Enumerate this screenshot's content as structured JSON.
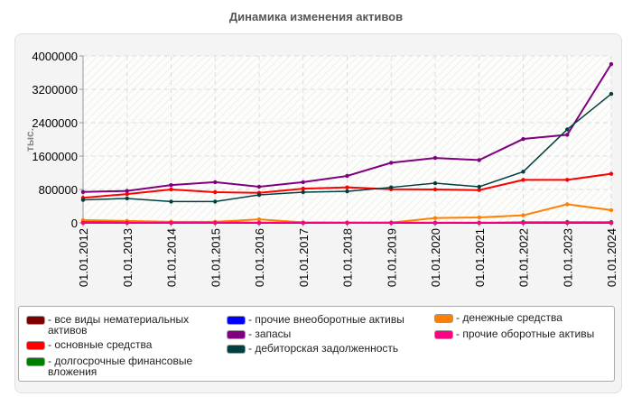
{
  "chart_data": {
    "type": "line",
    "title": "Динамика изменения активов",
    "ylabel": "тыс.",
    "xlabel": "",
    "ylim": [
      0,
      4000000
    ],
    "yticks": [
      "0",
      "800000",
      "1600000",
      "2400000",
      "3200000",
      "4000000"
    ],
    "grid": true,
    "legend_position": "bottom",
    "categories": [
      "01.01.2012",
      "01.01.2013",
      "01.01.2014",
      "01.01.2015",
      "01.01.2016",
      "01.01.2017",
      "01.01.2018",
      "01.01.2019",
      "01.01.2020",
      "01.01.2021",
      "01.01.2022",
      "01.01.2023",
      "01.01.2024"
    ],
    "series": [
      {
        "name": "- все виды нематериальных активов",
        "color": "#800000",
        "values": [
          0,
          0,
          0,
          0,
          0,
          0,
          0,
          0,
          0,
          0,
          0,
          0,
          0
        ]
      },
      {
        "name": "- основные средства",
        "color": "#ff0000",
        "values": [
          600000,
          690000,
          800000,
          735000,
          720000,
          820000,
          850000,
          805000,
          800000,
          785000,
          1030000,
          1030000,
          1175000
        ]
      },
      {
        "name": "- долгосрочные финансовые вложения",
        "color": "#008000",
        "values": [
          0,
          0,
          0,
          0,
          0,
          0,
          0,
          0,
          0,
          0,
          20000,
          20000,
          20000
        ]
      },
      {
        "name": "- прочие внеоборотные активы",
        "color": "#0000ff",
        "values": [
          15000,
          15000,
          10000,
          10000,
          0,
          0,
          0,
          0,
          0,
          0,
          0,
          0,
          0
        ]
      },
      {
        "name": "- запасы",
        "color": "#800080",
        "values": [
          740000,
          765000,
          905000,
          975000,
          865000,
          975000,
          1125000,
          1440000,
          1555000,
          1505000,
          2010000,
          2110000,
          3805000
        ]
      },
      {
        "name": "- дебиторская задолженность",
        "color": "#004040",
        "values": [
          550000,
          585000,
          510000,
          510000,
          670000,
          735000,
          755000,
          850000,
          950000,
          865000,
          1225000,
          2240000,
          3090000
        ]
      },
      {
        "name": "- денежные средства",
        "color": "#ff8000",
        "values": [
          65000,
          45000,
          25000,
          25000,
          85000,
          10000,
          5000,
          5000,
          115000,
          130000,
          180000,
          445000,
          305000
        ]
      },
      {
        "name": "- прочие оборотные активы",
        "color": "#ff0080",
        "values": [
          5000,
          5000,
          5000,
          5000,
          5000,
          5000,
          5000,
          5000,
          5000,
          5000,
          5000,
          5000,
          5000
        ]
      }
    ]
  }
}
